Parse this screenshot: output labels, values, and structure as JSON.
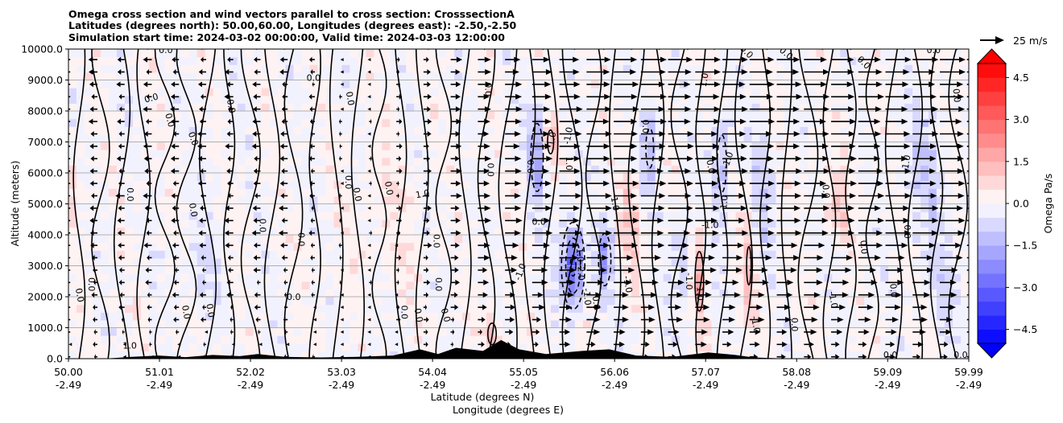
{
  "chart_data": {
    "type": "cross-section",
    "title_lines": [
      "Omega cross section and wind vectors parallel to cross section: CrosssectionA",
      "Latitudes (degrees north): 50.00,60.00, Longitudes (degrees east): -2.50,-2.50",
      "Simulation start time: 2024-03-02 00:00:00, Valid time: 2024-03-03 12:00:00"
    ],
    "ylabel": "Altitude (meters)",
    "xlabel": "Latitude (degrees N)",
    "xlabel2": "Longitude (degrees E)",
    "ylim": [
      0,
      10000
    ],
    "xlim": [
      50.0,
      59.99
    ],
    "y_ticks": [
      0,
      1000,
      2000,
      3000,
      4000,
      5000,
      6000,
      7000,
      8000,
      9000,
      10000
    ],
    "y_tick_labels": [
      "0.0",
      "1000.0",
      "2000.0",
      "3000.0",
      "4000.0",
      "5000.0",
      "6000.0",
      "7000.0",
      "8000.0",
      "9000.0",
      "10000.0"
    ],
    "x_ticks": [
      50.0,
      51.01,
      52.02,
      53.03,
      54.04,
      55.05,
      56.06,
      57.07,
      58.08,
      59.09,
      59.99
    ],
    "x_tick_lat_labels": [
      "50.00",
      "51.01",
      "52.02",
      "53.03",
      "54.04",
      "55.05",
      "56.06",
      "57.07",
      "58.08",
      "59.09",
      "59.99"
    ],
    "x_tick_lon_labels": [
      "-2.49",
      "-2.49",
      "-2.49",
      "-2.49",
      "-2.49",
      "-2.49",
      "-2.49",
      "-2.49",
      "-2.49",
      "-2.49",
      "-2.49"
    ],
    "colorbar": {
      "label": "Omega Pa/s",
      "range": [
        -5.0,
        5.0
      ],
      "tick_values": [
        -4.5,
        -3.0,
        -1.5,
        0.0,
        1.5,
        3.0,
        4.5
      ],
      "tick_labels": [
        "−4.5",
        "−3.0",
        "−1.5",
        "0.0",
        "1.5",
        "3.0",
        "4.5"
      ],
      "extend": "both",
      "low_color": "#0000ff",
      "high_color": "#ff0000"
    },
    "wind_key": {
      "label": "25 m/s",
      "speed": 25
    },
    "terrain": [
      {
        "lat": 50.0,
        "height": 0
      },
      {
        "lat": 50.4,
        "height": 0
      },
      {
        "lat": 50.7,
        "height": 60
      },
      {
        "lat": 51.0,
        "height": 100
      },
      {
        "lat": 51.3,
        "height": 50
      },
      {
        "lat": 51.6,
        "height": 120
      },
      {
        "lat": 51.9,
        "height": 80
      },
      {
        "lat": 52.1,
        "height": 150
      },
      {
        "lat": 52.4,
        "height": 60
      },
      {
        "lat": 52.8,
        "height": 40
      },
      {
        "lat": 53.2,
        "height": 60
      },
      {
        "lat": 53.6,
        "height": 100
      },
      {
        "lat": 53.9,
        "height": 300
      },
      {
        "lat": 54.1,
        "height": 150
      },
      {
        "lat": 54.3,
        "height": 350
      },
      {
        "lat": 54.6,
        "height": 250
      },
      {
        "lat": 54.8,
        "height": 600
      },
      {
        "lat": 55.0,
        "height": 300
      },
      {
        "lat": 55.3,
        "height": 150
      },
      {
        "lat": 55.7,
        "height": 250
      },
      {
        "lat": 56.0,
        "height": 300
      },
      {
        "lat": 56.3,
        "height": 100
      },
      {
        "lat": 56.7,
        "height": 60
      },
      {
        "lat": 57.1,
        "height": 200
      },
      {
        "lat": 57.4,
        "height": 120
      },
      {
        "lat": 57.6,
        "height": 40
      },
      {
        "lat": 58.0,
        "height": 0
      },
      {
        "lat": 59.99,
        "height": 0
      }
    ],
    "omega_features": [
      {
        "lat": 55.6,
        "alt": 3000,
        "omega": -3.2,
        "wlat": 0.12,
        "walt": 1300
      },
      {
        "lat": 55.95,
        "alt": 3200,
        "omega": -1.8,
        "wlat": 0.09,
        "walt": 1100
      },
      {
        "lat": 55.2,
        "alt": 6500,
        "omega": -1.6,
        "wlat": 0.1,
        "walt": 1600
      },
      {
        "lat": 56.45,
        "alt": 6800,
        "omega": -1.2,
        "wlat": 0.1,
        "walt": 1500
      },
      {
        "lat": 57.25,
        "alt": 6300,
        "omega": -1.3,
        "wlat": 0.1,
        "walt": 1800
      },
      {
        "lat": 57.7,
        "alt": 5500,
        "omega": -0.9,
        "wlat": 0.12,
        "walt": 2200
      },
      {
        "lat": 59.5,
        "alt": 6000,
        "omega": -0.8,
        "wlat": 0.25,
        "walt": 2500
      },
      {
        "lat": 59.7,
        "alt": 2500,
        "omega": -0.6,
        "wlat": 0.2,
        "walt": 1500
      },
      {
        "lat": 56.8,
        "alt": 3200,
        "omega": -1.0,
        "wlat": 0.12,
        "walt": 1500
      },
      {
        "lat": 55.35,
        "alt": 7000,
        "omega": 1.2,
        "wlat": 0.08,
        "walt": 900
      },
      {
        "lat": 56.25,
        "alt": 4500,
        "omega": 1.0,
        "wlat": 0.1,
        "walt": 1800
      },
      {
        "lat": 57.0,
        "alt": 2500,
        "omega": 1.6,
        "wlat": 0.07,
        "walt": 1400
      },
      {
        "lat": 57.55,
        "alt": 3000,
        "omega": 1.1,
        "wlat": 0.08,
        "walt": 2000
      },
      {
        "lat": 58.55,
        "alt": 5000,
        "omega": 0.9,
        "wlat": 0.15,
        "walt": 1200
      },
      {
        "lat": 50.05,
        "alt": 5500,
        "omega": 0.8,
        "wlat": 0.1,
        "walt": 1200
      },
      {
        "lat": 54.7,
        "alt": 800,
        "omega": 1.4,
        "wlat": 0.08,
        "walt": 600
      },
      {
        "lat": 53.5,
        "alt": 5000,
        "omega": 0.4,
        "wlat": 0.3,
        "walt": 2500
      },
      {
        "lat": 51.5,
        "alt": 3000,
        "omega": -0.5,
        "wlat": 0.25,
        "walt": 1500
      }
    ],
    "contour_labels": [
      {
        "text": "0.0",
        "lat": 51.08,
        "alt": 9950,
        "angle": 0
      },
      {
        "text": "0.0",
        "lat": 52.72,
        "alt": 9050,
        "angle": 0
      },
      {
        "text": "0.0",
        "lat": 50.92,
        "alt": 8400,
        "angle": -15
      },
      {
        "text": "0.0",
        "lat": 51.8,
        "alt": 8150,
        "angle": 80
      },
      {
        "text": "0.0",
        "lat": 51.12,
        "alt": 7700,
        "angle": 75
      },
      {
        "text": "0.0",
        "lat": 51.38,
        "alt": 7100,
        "angle": 70
      },
      {
        "text": "0.0",
        "lat": 50.68,
        "alt": 5300,
        "angle": 90
      },
      {
        "text": "0.0",
        "lat": 51.38,
        "alt": 4800,
        "angle": 80
      },
      {
        "text": "0.0",
        "lat": 52.15,
        "alt": 4300,
        "angle": 90
      },
      {
        "text": "0.0",
        "lat": 52.58,
        "alt": 3850,
        "angle": 90
      },
      {
        "text": "0.0",
        "lat": 52.5,
        "alt": 1980,
        "angle": 0
      },
      {
        "text": "0.0",
        "lat": 50.12,
        "alt": 2050,
        "angle": 80
      },
      {
        "text": "0.0",
        "lat": 50.25,
        "alt": 2400,
        "angle": 90
      },
      {
        "text": "0.0",
        "lat": 51.3,
        "alt": 1500,
        "angle": 80
      },
      {
        "text": "0.0",
        "lat": 51.57,
        "alt": 1550,
        "angle": 80
      },
      {
        "text": "0.0",
        "lat": 53.12,
        "alt": 8400,
        "angle": 80
      },
      {
        "text": "0.0",
        "lat": 53.1,
        "alt": 5700,
        "angle": 90
      },
      {
        "text": "0.0",
        "lat": 53.2,
        "alt": 5300,
        "angle": 80
      },
      {
        "text": "0.0",
        "lat": 54.08,
        "alt": 3800,
        "angle": 90
      },
      {
        "text": "0.0",
        "lat": 54.1,
        "alt": 2400,
        "angle": 90
      },
      {
        "text": "0.0",
        "lat": 53.72,
        "alt": 1500,
        "angle": 90
      },
      {
        "text": "0.0",
        "lat": 53.88,
        "alt": 1400,
        "angle": 80
      },
      {
        "text": "0.0",
        "lat": 54.18,
        "alt": 1400,
        "angle": 75
      },
      {
        "text": "0.0",
        "lat": 53.55,
        "alt": 5500,
        "angle": 80
      },
      {
        "text": "0.0",
        "lat": 54.65,
        "alt": 8700,
        "angle": 90
      },
      {
        "text": "0.0",
        "lat": 54.68,
        "alt": 6100,
        "angle": 90
      },
      {
        "text": "0.0",
        "lat": 55.12,
        "alt": 6200,
        "angle": 90
      },
      {
        "text": "0.0",
        "lat": 55.22,
        "alt": 4400,
        "angle": 0
      },
      {
        "text": "0.0",
        "lat": 55.85,
        "alt": 1800,
        "angle": 85
      },
      {
        "text": "0.0",
        "lat": 56.4,
        "alt": 7500,
        "angle": 90
      },
      {
        "text": "0.0",
        "lat": 57.12,
        "alt": 6200,
        "angle": 80
      },
      {
        "text": "0.0",
        "lat": 57.52,
        "alt": 9900,
        "angle": 45
      },
      {
        "text": "0.0",
        "lat": 57.96,
        "alt": 9850,
        "angle": 40
      },
      {
        "text": "0.0",
        "lat": 58.82,
        "alt": 9550,
        "angle": 45
      },
      {
        "text": "0.0",
        "lat": 58.4,
        "alt": 5400,
        "angle": 85
      },
      {
        "text": "0.0",
        "lat": 58.05,
        "alt": 1100,
        "angle": 90
      },
      {
        "text": "0.0",
        "lat": 58.82,
        "alt": 3600,
        "angle": 85
      },
      {
        "text": "0.0",
        "lat": 59.15,
        "alt": 2200,
        "angle": 85
      },
      {
        "text": "0.0",
        "lat": 59.3,
        "alt": 4100,
        "angle": 90
      },
      {
        "text": "0.0",
        "lat": 59.85,
        "alt": 8500,
        "angle": 85
      },
      {
        "text": "0.0",
        "lat": 59.12,
        "alt": 100,
        "angle": 0
      },
      {
        "text": "0.0",
        "lat": 59.9,
        "alt": 100,
        "angle": 0
      },
      {
        "text": "0.0",
        "lat": 59.6,
        "alt": 9950,
        "angle": 0
      },
      {
        "text": "1.0",
        "lat": 55.37,
        "alt": 7100,
        "angle": -80
      },
      {
        "text": "1.0",
        "lat": 56.06,
        "alt": 5000,
        "angle": 80
      },
      {
        "text": "1.0",
        "lat": 53.93,
        "alt": 5300,
        "angle": -10
      },
      {
        "text": "1.0",
        "lat": 55.55,
        "alt": 6300,
        "angle": 90
      },
      {
        "text": "1.0",
        "lat": 57.0,
        "alt": 2100,
        "angle": 90
      },
      {
        "text": "1.0",
        "lat": 50.68,
        "alt": 400,
        "angle": 0
      },
      {
        "text": "1.0",
        "lat": 57.06,
        "alt": 9000,
        "angle": -80
      },
      {
        "text": "-1.0",
        "lat": 55.67,
        "alt": 3400,
        "angle": 85
      },
      {
        "text": "-1.0",
        "lat": 55.75,
        "alt": 2000,
        "angle": 85
      },
      {
        "text": "-2.0",
        "lat": 55.68,
        "alt": 2800,
        "angle": 88
      },
      {
        "text": "-1.0",
        "lat": 55.55,
        "alt": 7200,
        "angle": -80
      },
      {
        "text": "-1.0",
        "lat": 56.88,
        "alt": 2500,
        "angle": 90
      },
      {
        "text": "-1.0",
        "lat": 57.12,
        "alt": 4300,
        "angle": 0
      },
      {
        "text": "-1.0",
        "lat": 57.28,
        "alt": 5000,
        "angle": -85
      },
      {
        "text": "-1.0",
        "lat": 57.32,
        "alt": 6400,
        "angle": -70
      },
      {
        "text": "-1.0",
        "lat": 58.48,
        "alt": 1900,
        "angle": 80
      },
      {
        "text": "-1.0",
        "lat": 59.3,
        "alt": 6300,
        "angle": -80
      },
      {
        "text": "-1.0",
        "lat": 56.2,
        "alt": 2400,
        "angle": 80
      },
      {
        "text": "-1.0",
        "lat": 57.62,
        "alt": 1100,
        "angle": 80
      },
      {
        "text": "-1.0",
        "lat": 55.02,
        "alt": 2800,
        "angle": -70
      }
    ]
  }
}
